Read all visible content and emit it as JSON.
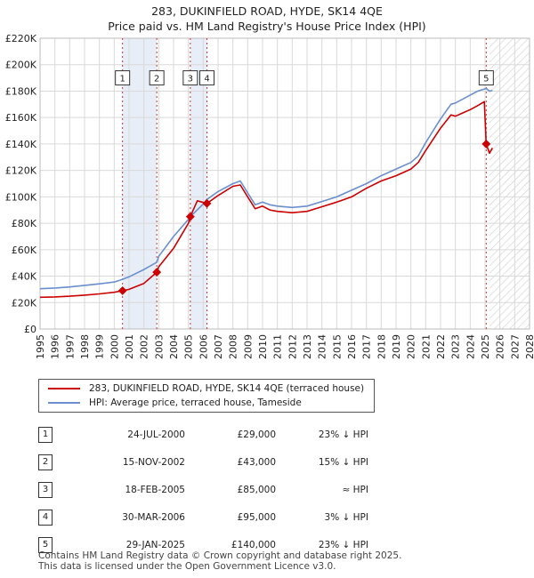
{
  "chart_data": {
    "type": "line",
    "title": "283, DUKINFIELD ROAD, HYDE, SK14 4QE",
    "subtitle": "Price paid vs. HM Land Registry's House Price Index (HPI)",
    "xlim": [
      1995,
      2028
    ],
    "ylim": [
      0,
      220000
    ],
    "x_ticks": [
      "1995",
      "1996",
      "1997",
      "1998",
      "1999",
      "2000",
      "2001",
      "2002",
      "2003",
      "2004",
      "2005",
      "2006",
      "2007",
      "2008",
      "2009",
      "2010",
      "2011",
      "2012",
      "2013",
      "2014",
      "2015",
      "2016",
      "2017",
      "2018",
      "2019",
      "2020",
      "2021",
      "2022",
      "2023",
      "2024",
      "2025",
      "2026",
      "2027",
      "2028"
    ],
    "y_ticks": [
      {
        "value": 0,
        "label": "£0"
      },
      {
        "value": 20000,
        "label": "£20K"
      },
      {
        "value": 40000,
        "label": "£40K"
      },
      {
        "value": 60000,
        "label": "£60K"
      },
      {
        "value": 80000,
        "label": "£80K"
      },
      {
        "value": 100000,
        "label": "£100K"
      },
      {
        "value": 120000,
        "label": "£120K"
      },
      {
        "value": 140000,
        "label": "£140K"
      },
      {
        "value": 160000,
        "label": "£160K"
      },
      {
        "value": 180000,
        "label": "£180K"
      },
      {
        "value": 200000,
        "label": "£200K"
      },
      {
        "value": 220000,
        "label": "£220K"
      }
    ],
    "grid": true,
    "hatched_future_from": 2025.3,
    "shaded_spans": [
      [
        2000.56,
        2002.87
      ],
      [
        2005.13,
        2006.25
      ]
    ],
    "series": [
      {
        "name": "283, DUKINFIELD ROAD, HYDE, SK14 4QE (terraced house)",
        "color": "#cc0000",
        "points": [
          [
            1995,
            24000
          ],
          [
            1996,
            24300
          ],
          [
            1997,
            24800
          ],
          [
            1998,
            25600
          ],
          [
            1999,
            26600
          ],
          [
            2000,
            27800
          ],
          [
            2000.56,
            29000
          ],
          [
            2001,
            30000
          ],
          [
            2002,
            34500
          ],
          [
            2002.87,
            43000
          ],
          [
            2003,
            47000
          ],
          [
            2004,
            61000
          ],
          [
            2005,
            80000
          ],
          [
            2005.13,
            85000
          ],
          [
            2005.6,
            97000
          ],
          [
            2006.25,
            95000
          ],
          [
            2007,
            101000
          ],
          [
            2008,
            108000
          ],
          [
            2008.5,
            109000
          ],
          [
            2009,
            100000
          ],
          [
            2009.5,
            91000
          ],
          [
            2010,
            93000
          ],
          [
            2010.5,
            90000
          ],
          [
            2011,
            89000
          ],
          [
            2012,
            88000
          ],
          [
            2013,
            89000
          ],
          [
            2014,
            92500
          ],
          [
            2015,
            96000
          ],
          [
            2016,
            100000
          ],
          [
            2017,
            106500
          ],
          [
            2018,
            112000
          ],
          [
            2019,
            116000
          ],
          [
            2020,
            121000
          ],
          [
            2020.5,
            126000
          ],
          [
            2021,
            135000
          ],
          [
            2022,
            152000
          ],
          [
            2022.7,
            162000
          ],
          [
            2023,
            161000
          ],
          [
            2023.5,
            163500
          ],
          [
            2024,
            166000
          ],
          [
            2024.5,
            169000
          ],
          [
            2024.95,
            172000
          ],
          [
            2025.08,
            140000
          ],
          [
            2025.3,
            133000
          ],
          [
            2025.5,
            137000
          ]
        ]
      },
      {
        "name": "HPI: Average price, terraced house, Tameside",
        "color": "#6b8fce",
        "points": [
          [
            1995,
            30500
          ],
          [
            1996,
            31000
          ],
          [
            1997,
            31800
          ],
          [
            1998,
            33000
          ],
          [
            1999,
            34200
          ],
          [
            2000,
            35500
          ],
          [
            2000.56,
            37600
          ],
          [
            2001,
            39500
          ],
          [
            2002,
            45000
          ],
          [
            2002.87,
            50500
          ],
          [
            2003,
            55000
          ],
          [
            2004,
            70000
          ],
          [
            2005,
            83000
          ],
          [
            2005.13,
            85000
          ],
          [
            2006,
            94500
          ],
          [
            2006.25,
            98000
          ],
          [
            2007,
            104000
          ],
          [
            2008,
            110000
          ],
          [
            2008.5,
            112000
          ],
          [
            2009,
            103000
          ],
          [
            2009.5,
            94000
          ],
          [
            2010,
            96000
          ],
          [
            2010.5,
            94000
          ],
          [
            2011,
            93000
          ],
          [
            2012,
            92000
          ],
          [
            2013,
            93000
          ],
          [
            2014,
            96500
          ],
          [
            2015,
            100000
          ],
          [
            2016,
            105000
          ],
          [
            2017,
            110000
          ],
          [
            2018,
            116000
          ],
          [
            2019,
            121000
          ],
          [
            2020,
            126000
          ],
          [
            2020.5,
            131000
          ],
          [
            2021,
            141000
          ],
          [
            2022,
            159000
          ],
          [
            2022.7,
            170000
          ],
          [
            2023,
            171000
          ],
          [
            2023.5,
            174000
          ],
          [
            2024,
            177000
          ],
          [
            2024.5,
            180000
          ],
          [
            2025.08,
            182000
          ],
          [
            2025.3,
            180000
          ],
          [
            2025.5,
            180500
          ]
        ]
      }
    ],
    "sales": [
      {
        "label": "1",
        "x": 2000.56,
        "price": 29000
      },
      {
        "label": "2",
        "x": 2002.87,
        "price": 43000
      },
      {
        "label": "3",
        "x": 2005.13,
        "price": 85000
      },
      {
        "label": "4",
        "x": 2006.25,
        "price": 95000
      },
      {
        "label": "5",
        "x": 2025.08,
        "price": 140000
      }
    ],
    "marker_box_value": 190000
  },
  "legend": {
    "property": "283, DUKINFIELD ROAD, HYDE, SK14 4QE (terraced house)",
    "hpi": "HPI: Average price, terraced house, Tameside"
  },
  "transactions": [
    {
      "num": "1",
      "date": "24-JUL-2000",
      "price": "£29,000",
      "hpi": "23% ↓ HPI"
    },
    {
      "num": "2",
      "date": "15-NOV-2002",
      "price": "£43,000",
      "hpi": "15% ↓ HPI"
    },
    {
      "num": "3",
      "date": "18-FEB-2005",
      "price": "£85,000",
      "hpi": "≈ HPI"
    },
    {
      "num": "4",
      "date": "30-MAR-2006",
      "price": "£95,000",
      "hpi": "3% ↓ HPI"
    },
    {
      "num": "5",
      "date": "29-JAN-2025",
      "price": "£140,000",
      "hpi": "23% ↓ HPI"
    }
  ],
  "footer": {
    "line1": "Contains HM Land Registry data © Crown copyright and database right 2025.",
    "line2": "This data is licensed under the Open Government Licence v3.0."
  }
}
